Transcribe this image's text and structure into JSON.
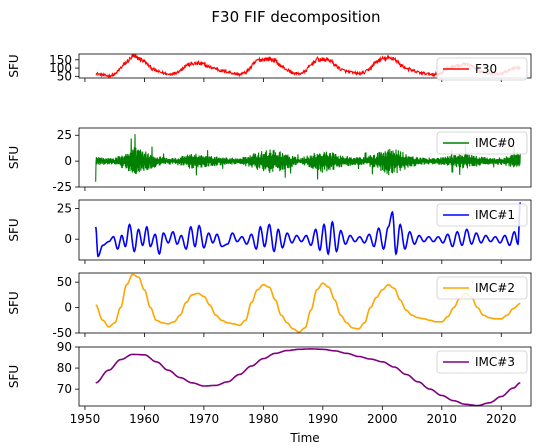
{
  "title": "F30 FIF decomposition",
  "chart_data": [
    {
      "type": "line",
      "ylabel": "SFU",
      "xlim": [
        1949,
        2025
      ],
      "ylim": [
        40,
        185
      ],
      "yticks": [
        50,
        100,
        150
      ],
      "series": [
        {
          "name": "F30",
          "color": "#ff0000"
        }
      ],
      "legend": "top-right",
      "anchors": [
        [
          1951.8,
          68
        ],
        [
          1953,
          58
        ],
        [
          1954,
          52
        ],
        [
          1955,
          60
        ],
        [
          1956,
          100
        ],
        [
          1957,
          135
        ],
        [
          1958,
          170
        ],
        [
          1959,
          160
        ],
        [
          1960,
          140
        ],
        [
          1961,
          105
        ],
        [
          1962,
          82
        ],
        [
          1963,
          72
        ],
        [
          1964,
          62
        ],
        [
          1965,
          68
        ],
        [
          1966,
          85
        ],
        [
          1967,
          118
        ],
        [
          1968,
          125
        ],
        [
          1969,
          128
        ],
        [
          1970,
          122
        ],
        [
          1971,
          105
        ],
        [
          1972,
          98
        ],
        [
          1973,
          82
        ],
        [
          1974,
          78
        ],
        [
          1975,
          68
        ],
        [
          1976,
          62
        ],
        [
          1977,
          72
        ],
        [
          1978,
          110
        ],
        [
          1979,
          148
        ],
        [
          1980,
          153
        ],
        [
          1981,
          155
        ],
        [
          1982,
          145
        ],
        [
          1983,
          110
        ],
        [
          1984,
          90
        ],
        [
          1985,
          70
        ],
        [
          1986,
          65
        ],
        [
          1987,
          78
        ],
        [
          1988,
          120
        ],
        [
          1989,
          152
        ],
        [
          1990,
          150
        ],
        [
          1991,
          152
        ],
        [
          1992,
          120
        ],
        [
          1993,
          92
        ],
        [
          1994,
          80
        ],
        [
          1995,
          72
        ],
        [
          1996,
          67
        ],
        [
          1997,
          72
        ],
        [
          1998,
          100
        ],
        [
          1999,
          140
        ],
        [
          2000,
          155
        ],
        [
          2001,
          158
        ],
        [
          2002,
          160
        ],
        [
          2003,
          120
        ],
        [
          2004,
          100
        ],
        [
          2005,
          85
        ],
        [
          2006,
          75
        ],
        [
          2007,
          68
        ],
        [
          2008,
          64
        ],
        [
          2009,
          63
        ],
        [
          2010,
          72
        ],
        [
          2011,
          100
        ],
        [
          2012,
          112
        ],
        [
          2013,
          115
        ],
        [
          2014,
          125
        ],
        [
          2015,
          110
        ],
        [
          2016,
          88
        ],
        [
          2017,
          76
        ],
        [
          2018,
          68
        ],
        [
          2019,
          65
        ],
        [
          2020,
          68
        ],
        [
          2021,
          78
        ],
        [
          2022,
          100
        ],
        [
          2023.2,
          104
        ]
      ],
      "noise": 10
    },
    {
      "type": "line",
      "ylabel": "SFU",
      "xlim": [
        1949,
        2025
      ],
      "ylim": [
        -25,
        32
      ],
      "yticks": [
        -25,
        0,
        25
      ],
      "series": [
        {
          "name": "IMC#0",
          "color": "#008000"
        }
      ],
      "legend": "top-right",
      "envelope": [
        [
          1951.8,
          4
        ],
        [
          1955,
          3
        ],
        [
          1957,
          9
        ],
        [
          1958.5,
          14
        ],
        [
          1960,
          10
        ],
        [
          1963,
          4
        ],
        [
          1965,
          3
        ],
        [
          1968,
          8
        ],
        [
          1970,
          6
        ],
        [
          1973,
          4
        ],
        [
          1976,
          3
        ],
        [
          1979,
          9
        ],
        [
          1981,
          12
        ],
        [
          1983,
          10
        ],
        [
          1986,
          3
        ],
        [
          1989,
          9
        ],
        [
          1990,
          12
        ],
        [
          1992,
          8
        ],
        [
          1995,
          4
        ],
        [
          1997,
          4
        ],
        [
          2000,
          10
        ],
        [
          2001.5,
          15
        ],
        [
          2003,
          10
        ],
        [
          2006,
          4
        ],
        [
          2009,
          3
        ],
        [
          2012,
          6
        ],
        [
          2014,
          8
        ],
        [
          2016,
          5
        ],
        [
          2019,
          3
        ],
        [
          2021,
          5
        ],
        [
          2023.2,
          10
        ]
      ]
    },
    {
      "type": "line",
      "ylabel": "SFU",
      "xlim": [
        1949,
        2025
      ],
      "ylim": [
        -17,
        32
      ],
      "yticks": [
        0,
        25
      ],
      "series": [
        {
          "name": "IMC#1",
          "color": "#0000ff"
        }
      ],
      "legend": "top-right",
      "points": [
        [
          1951.8,
          10
        ],
        [
          1952.2,
          -14
        ],
        [
          1953,
          -5
        ],
        [
          1954,
          -2
        ],
        [
          1954.8,
          2
        ],
        [
          1955.5,
          -8
        ],
        [
          1956.2,
          3
        ],
        [
          1956.8,
          -6
        ],
        [
          1957.5,
          12
        ],
        [
          1958.3,
          -10
        ],
        [
          1959,
          8
        ],
        [
          1959.7,
          -5
        ],
        [
          1960.4,
          10
        ],
        [
          1961,
          -6
        ],
        [
          1961.8,
          4
        ],
        [
          1962.5,
          -12
        ],
        [
          1963.2,
          5
        ],
        [
          1964,
          -3
        ],
        [
          1964.8,
          6
        ],
        [
          1965.5,
          -4
        ],
        [
          1966.2,
          3
        ],
        [
          1967,
          -8
        ],
        [
          1967.8,
          10
        ],
        [
          1968.5,
          -6
        ],
        [
          1969.2,
          11
        ],
        [
          1970,
          -7
        ],
        [
          1970.8,
          5
        ],
        [
          1971.5,
          -3
        ],
        [
          1972.2,
          4
        ],
        [
          1973,
          -6
        ],
        [
          1974,
          -4
        ],
        [
          1974.8,
          5
        ],
        [
          1975.6,
          -2
        ],
        [
          1976.4,
          2
        ],
        [
          1977.2,
          -4
        ],
        [
          1978,
          4
        ],
        [
          1978.8,
          -8
        ],
        [
          1979.5,
          10
        ],
        [
          1980.2,
          -6
        ],
        [
          1981,
          12
        ],
        [
          1981.8,
          -10
        ],
        [
          1982.5,
          8
        ],
        [
          1983.2,
          -7
        ],
        [
          1984,
          5
        ],
        [
          1984.8,
          -3
        ],
        [
          1985.6,
          3
        ],
        [
          1986.4,
          -2
        ],
        [
          1987.2,
          3
        ],
        [
          1988,
          -5
        ],
        [
          1988.8,
          8
        ],
        [
          1989.5,
          -9
        ],
        [
          1990.2,
          12
        ],
        [
          1990.9,
          -12
        ],
        [
          1991.6,
          14
        ],
        [
          1992.3,
          -10
        ],
        [
          1993,
          7
        ],
        [
          1993.8,
          -4
        ],
        [
          1994.6,
          3
        ],
        [
          1995.4,
          -2
        ],
        [
          1996.2,
          2
        ],
        [
          1997,
          -3
        ],
        [
          1997.8,
          4
        ],
        [
          1998.6,
          -6
        ],
        [
          1999.4,
          9
        ],
        [
          2000.2,
          -8
        ],
        [
          2001,
          10
        ],
        [
          2001.7,
          22
        ],
        [
          2002.3,
          -12
        ],
        [
          2003,
          12
        ],
        [
          2003.8,
          -8
        ],
        [
          2004.6,
          6
        ],
        [
          2005.4,
          -4
        ],
        [
          2006.2,
          3
        ],
        [
          2007,
          -2
        ],
        [
          2007.8,
          2
        ],
        [
          2008.6,
          -2
        ],
        [
          2009.4,
          2
        ],
        [
          2010.2,
          -3
        ],
        [
          2011,
          4
        ],
        [
          2011.8,
          -6
        ],
        [
          2012.6,
          6
        ],
        [
          2013.4,
          -5
        ],
        [
          2014.2,
          8
        ],
        [
          2015,
          -4
        ],
        [
          2015.8,
          5
        ],
        [
          2016.6,
          -3
        ],
        [
          2017.4,
          3
        ],
        [
          2018.2,
          -2
        ],
        [
          2019,
          2
        ],
        [
          2019.8,
          -3
        ],
        [
          2020.6,
          3
        ],
        [
          2021.4,
          -5
        ],
        [
          2022.2,
          6
        ],
        [
          2022.8,
          -4
        ],
        [
          2023.2,
          30
        ]
      ]
    },
    {
      "type": "line",
      "ylabel": "SFU",
      "xlim": [
        1949,
        2025
      ],
      "ylim": [
        -50,
        68
      ],
      "yticks": [
        -50,
        0,
        50
      ],
      "series": [
        {
          "name": "IMC#2",
          "color": "#ffa500"
        }
      ],
      "legend": "top-right",
      "points": [
        [
          1951.8,
          5
        ],
        [
          1953,
          -25
        ],
        [
          1954,
          -38
        ],
        [
          1955,
          -30
        ],
        [
          1956,
          0
        ],
        [
          1957,
          45
        ],
        [
          1958,
          65
        ],
        [
          1959,
          60
        ],
        [
          1960,
          35
        ],
        [
          1961,
          0
        ],
        [
          1962,
          -25
        ],
        [
          1963,
          -30
        ],
        [
          1964,
          -32
        ],
        [
          1965,
          -28
        ],
        [
          1966,
          -15
        ],
        [
          1967,
          10
        ],
        [
          1968,
          25
        ],
        [
          1969,
          28
        ],
        [
          1970,
          22
        ],
        [
          1971,
          5
        ],
        [
          1972,
          -15
        ],
        [
          1973,
          -25
        ],
        [
          1974,
          -30
        ],
        [
          1975,
          -32
        ],
        [
          1976,
          -35
        ],
        [
          1977,
          -25
        ],
        [
          1978,
          10
        ],
        [
          1979,
          35
        ],
        [
          1980,
          45
        ],
        [
          1981,
          40
        ],
        [
          1982,
          15
        ],
        [
          1983,
          -15
        ],
        [
          1984,
          -30
        ],
        [
          1985,
          -42
        ],
        [
          1986,
          -48
        ],
        [
          1987,
          -40
        ],
        [
          1988,
          -5
        ],
        [
          1989,
          35
        ],
        [
          1990,
          48
        ],
        [
          1991,
          40
        ],
        [
          1992,
          15
        ],
        [
          1993,
          -15
        ],
        [
          1994,
          -30
        ],
        [
          1995,
          -40
        ],
        [
          1996,
          -42
        ],
        [
          1997,
          -30
        ],
        [
          1998,
          0
        ],
        [
          1999,
          20
        ],
        [
          2000,
          35
        ],
        [
          2001,
          45
        ],
        [
          2002,
          38
        ],
        [
          2003,
          15
        ],
        [
          2004,
          -5
        ],
        [
          2005,
          -15
        ],
        [
          2006,
          -20
        ],
        [
          2007,
          -22
        ],
        [
          2008,
          -25
        ],
        [
          2009,
          -28
        ],
        [
          2010,
          -28
        ],
        [
          2011,
          -18
        ],
        [
          2012,
          0
        ],
        [
          2013,
          18
        ],
        [
          2014,
          28
        ],
        [
          2015,
          20
        ],
        [
          2016,
          0
        ],
        [
          2017,
          -15
        ],
        [
          2018,
          -20
        ],
        [
          2019,
          -22
        ],
        [
          2020,
          -22
        ],
        [
          2021,
          -15
        ],
        [
          2022,
          -2
        ],
        [
          2023.2,
          8
        ]
      ]
    },
    {
      "type": "line",
      "ylabel": "SFU",
      "xlabel": "Time",
      "xlim": [
        1949,
        2025
      ],
      "ylim": [
        62,
        90
      ],
      "yticks": [
        70,
        80,
        90
      ],
      "xticks": [
        1950,
        1960,
        1970,
        1980,
        1990,
        2000,
        2010,
        2020
      ],
      "series": [
        {
          "name": "IMC#3",
          "color": "#800080"
        }
      ],
      "legend": "top-right",
      "points": [
        [
          1951.8,
          73
        ],
        [
          1954,
          79
        ],
        [
          1956,
          84
        ],
        [
          1958,
          86.5
        ],
        [
          1960,
          86.3
        ],
        [
          1962,
          83
        ],
        [
          1964,
          79
        ],
        [
          1966,
          75.5
        ],
        [
          1968,
          73
        ],
        [
          1970,
          71.5
        ],
        [
          1972,
          71.8
        ],
        [
          1974,
          73.5
        ],
        [
          1976,
          77
        ],
        [
          1978,
          81
        ],
        [
          1980,
          84.5
        ],
        [
          1982,
          87
        ],
        [
          1984,
          88.3
        ],
        [
          1986,
          88.9
        ],
        [
          1988,
          89.1
        ],
        [
          1990,
          88.9
        ],
        [
          1992,
          88.2
        ],
        [
          1994,
          87
        ],
        [
          1996,
          85.5
        ],
        [
          1998,
          84.3
        ],
        [
          2000,
          83
        ],
        [
          2002,
          80.5
        ],
        [
          2004,
          77
        ],
        [
          2006,
          73.5
        ],
        [
          2008,
          70
        ],
        [
          2010,
          67
        ],
        [
          2012,
          64.5
        ],
        [
          2014,
          62.8
        ],
        [
          2016,
          62.2
        ],
        [
          2018,
          63.5
        ],
        [
          2020,
          66.5
        ],
        [
          2022,
          70.5
        ],
        [
          2023.2,
          73
        ]
      ]
    }
  ]
}
